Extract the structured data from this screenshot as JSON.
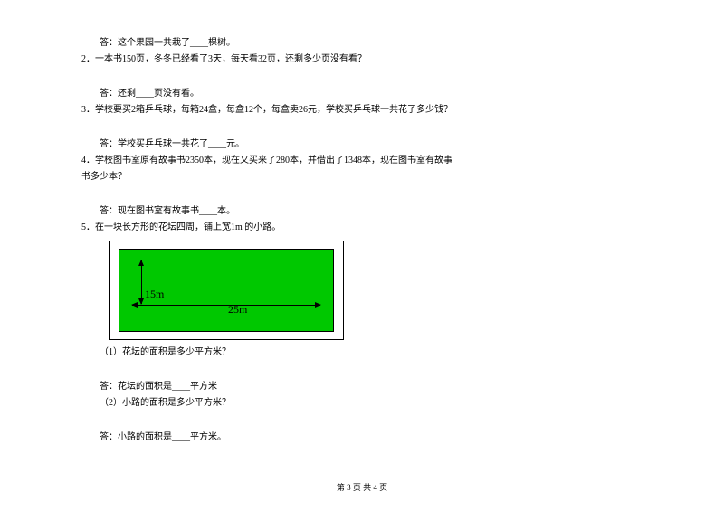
{
  "q1": {
    "answer_line": "答：这个果园一共栽了____棵树。"
  },
  "q2": {
    "stem": "2．一本书150页，冬冬已经看了3天，每天看32页，还剩多少页没有看？",
    "answer_line": "答：还剩____页没有看。"
  },
  "q3": {
    "stem": "3．学校要买2箱乒乓球，每箱24盒，每盒12个，每盒卖26元，学校买乒乓球一共花了多少钱？",
    "answer_line": "答：学校买乒乓球一共花了____元。"
  },
  "q4": {
    "stem_a": "4．学校图书室原有故事书2350本，现在又买来了280本，并借出了1348本，现在图书室有故事",
    "stem_b": "书多少本？",
    "answer_line": "答：现在图书室有故事书____本。"
  },
  "q5": {
    "stem": "5．在一块长方形的花坛四周，铺上宽1m 的小路。",
    "diagram": {
      "outer_border_color": "#000000",
      "inner_fill_color": "#00c800",
      "inner_border_color": "#000000",
      "width_label": "25m",
      "height_label": "15m",
      "arrow_color": "#000000",
      "label_color": "#000000",
      "label_fontsize": 12
    },
    "sub1": "（1）花坛的面积是多少平方米？",
    "ans1": "答：花坛的面积是____平方米",
    "sub2": "（2）小路的面积是多少平方米？",
    "ans2": "答：小路的面积是____平方米。"
  },
  "footer": "第 3 页 共 4 页",
  "style": {
    "page_bg": "#ffffff",
    "text_color": "#000000",
    "font_family": "SimSun",
    "base_fontsize": 10
  }
}
